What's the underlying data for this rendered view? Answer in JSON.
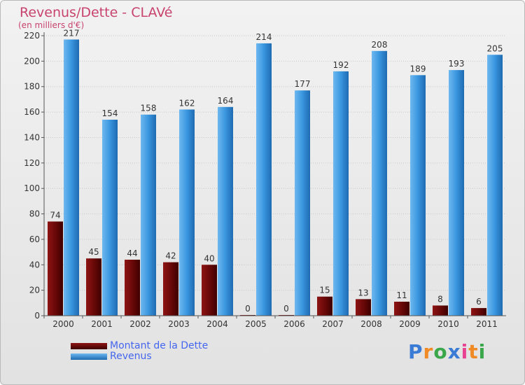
{
  "title": "Revenus/Dette - CLAVé",
  "subtitle": "(en milliers d'€)",
  "colors": {
    "debt": "#6e0a0a",
    "revenue": "#3a96df",
    "axis": "#555555",
    "grid": "#c8c8c8",
    "title": "#c8436e",
    "legend_text": "#4466ee"
  },
  "legend": [
    {
      "label": "Montant de la Dette",
      "color": "#6e0a0a"
    },
    {
      "label": "Revenus",
      "color": "#3a96df"
    }
  ],
  "logo": {
    "text": "Proxiti",
    "letters": [
      "P",
      "r",
      "o",
      "x",
      "i",
      "t",
      "i"
    ],
    "colors": [
      "#3a7bd5",
      "#f08a24",
      "#3aa84a",
      "#3a7bd5",
      "#e84393",
      "#f08a24",
      "#3aa84a"
    ]
  },
  "chart_data": {
    "type": "bar",
    "title": "Revenus/Dette - CLAVé",
    "subtitle": "(en milliers d'€)",
    "categories": [
      "2000",
      "2001",
      "2002",
      "2003",
      "2004",
      "2005",
      "2006",
      "2007",
      "2008",
      "2009",
      "2010",
      "2011"
    ],
    "series": [
      {
        "name": "Montant de la Dette",
        "values": [
          74,
          45,
          44,
          42,
          40,
          0,
          0,
          15,
          13,
          11,
          8,
          6
        ]
      },
      {
        "name": "Revenus",
        "values": [
          217,
          154,
          158,
          162,
          164,
          214,
          177,
          192,
          208,
          189,
          193,
          205
        ]
      }
    ],
    "ylim": [
      0,
      220
    ],
    "yticks": [
      0,
      20,
      40,
      60,
      80,
      100,
      120,
      140,
      160,
      180,
      200,
      220
    ],
    "grid": "horizontal",
    "legend_position": "bottom-left"
  }
}
